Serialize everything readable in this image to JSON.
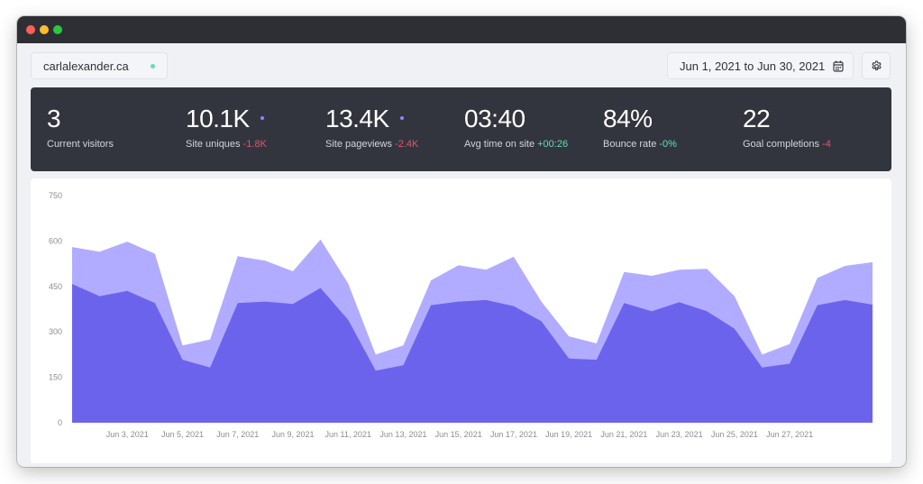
{
  "window": {
    "controls": [
      "close",
      "minimize",
      "zoom"
    ]
  },
  "toolbar": {
    "site": "carlalexander.ca",
    "date_range": "Jun 1, 2021 to Jun 30, 2021",
    "calendar_icon": "calendar-icon",
    "settings_icon": "gear-icon"
  },
  "stats": {
    "current_visitors": {
      "value": "3",
      "label": "Current visitors"
    },
    "site_uniques": {
      "value": "10.1K",
      "label": "Site uniques",
      "delta": "-1.8K"
    },
    "site_pageviews": {
      "value": "13.4K",
      "label": "Site pageviews",
      "delta": "-2.4K"
    },
    "avg_time": {
      "value": "03:40",
      "label": "Avg time on site",
      "delta": "+00:26"
    },
    "bounce_rate": {
      "value": "84%",
      "label": "Bounce rate",
      "delta": "-0%"
    },
    "goal_completions": {
      "value": "22",
      "label": "Goal completions",
      "delta": "-4"
    }
  },
  "colors": {
    "pageviews": "#b1acff",
    "uniques": "#6c63ed",
    "negative": "#e0546d",
    "positive": "#5fe0b1",
    "panel": "#33353e"
  },
  "chart_data": {
    "type": "area",
    "ylim": [
      0,
      750
    ],
    "y_ticks": [
      "0",
      "150",
      "300",
      "450",
      "600",
      "750"
    ],
    "x": [
      "Jun 1, 2021",
      "Jun 2, 2021",
      "Jun 3, 2021",
      "Jun 4, 2021",
      "Jun 5, 2021",
      "Jun 6, 2021",
      "Jun 7, 2021",
      "Jun 8, 2021",
      "Jun 9, 2021",
      "Jun 10, 2021",
      "Jun 11, 2021",
      "Jun 12, 2021",
      "Jun 13, 2021",
      "Jun 14, 2021",
      "Jun 15, 2021",
      "Jun 16, 2021",
      "Jun 17, 2021",
      "Jun 18, 2021",
      "Jun 19, 2021",
      "Jun 20, 2021",
      "Jun 21, 2021",
      "Jun 22, 2021",
      "Jun 23, 2021",
      "Jun 24, 2021",
      "Jun 25, 2021",
      "Jun 26, 2021",
      "Jun 27, 2021",
      "Jun 28, 2021",
      "Jun 29, 2021",
      "Jun 30, 2021"
    ],
    "x_tick_labels": [
      "Jun 3, 2021",
      "Jun 5, 2021",
      "Jun 7, 2021",
      "Jun 9, 2021",
      "Jun 11, 2021",
      "Jun 13, 2021",
      "Jun 15, 2021",
      "Jun 17, 2021",
      "Jun 19, 2021",
      "Jun 21, 2021",
      "Jun 23, 2021",
      "Jun 25, 2021",
      "Jun 27, 2021"
    ],
    "series": [
      {
        "values": [
          580,
          565,
          598,
          558,
          255,
          275,
          550,
          535,
          500,
          605,
          460,
          225,
          255,
          470,
          520,
          505,
          548,
          400,
          285,
          262,
          498,
          485,
          505,
          508,
          418,
          225,
          260,
          478,
          518,
          530
        ]
      },
      {
        "values": [
          458,
          418,
          435,
          395,
          208,
          182,
          395,
          400,
          392,
          445,
          340,
          172,
          190,
          388,
          400,
          405,
          385,
          335,
          212,
          208,
          395,
          368,
          398,
          368,
          310,
          182,
          195,
          388,
          405,
          390
        ]
      }
    ]
  }
}
